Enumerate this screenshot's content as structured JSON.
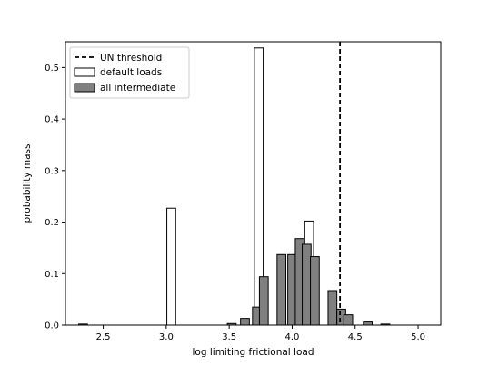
{
  "chart_data": {
    "type": "bar",
    "title": "",
    "xlabel": "log limiting frictional load",
    "ylabel": "probability mass",
    "xlim": [
      2.2,
      5.18
    ],
    "ylim": [
      0,
      0.55
    ],
    "xticks": [
      2.5,
      3.0,
      3.5,
      4.0,
      4.5,
      5.0
    ],
    "xtick_labels": [
      "2.5",
      "3.0",
      "3.5",
      "4.0",
      "4.5",
      "5.0"
    ],
    "yticks": [
      0.0,
      0.1,
      0.2,
      0.3,
      0.4,
      0.5
    ],
    "ytick_labels": [
      "0.0",
      "0.1",
      "0.2",
      "0.3",
      "0.4",
      "0.5"
    ],
    "bin_width": 0.07,
    "grid": false,
    "legend_position": "top-left",
    "threshold": {
      "name": "UN threshold",
      "x": 4.38,
      "color": "#000000",
      "style": "dashed"
    },
    "series": [
      {
        "name": "default loads",
        "style": "outline",
        "fill": "#ffffff",
        "edge": "#000000",
        "x": [
          3.04,
          3.735,
          4.135
        ],
        "values": [
          0.227,
          0.538,
          0.202
        ]
      },
      {
        "name": "all intermediate",
        "style": "filled",
        "fill": "#808080",
        "edge": "#000000",
        "x": [
          2.34,
          3.52,
          3.625,
          3.72,
          3.775,
          3.915,
          4.0,
          4.06,
          4.115,
          4.18,
          4.32,
          4.39,
          4.445,
          4.6,
          4.74
        ],
        "values": [
          0.002,
          0.003,
          0.013,
          0.035,
          0.094,
          0.137,
          0.137,
          0.168,
          0.157,
          0.133,
          0.067,
          0.031,
          0.02,
          0.006,
          0.002
        ]
      }
    ]
  }
}
